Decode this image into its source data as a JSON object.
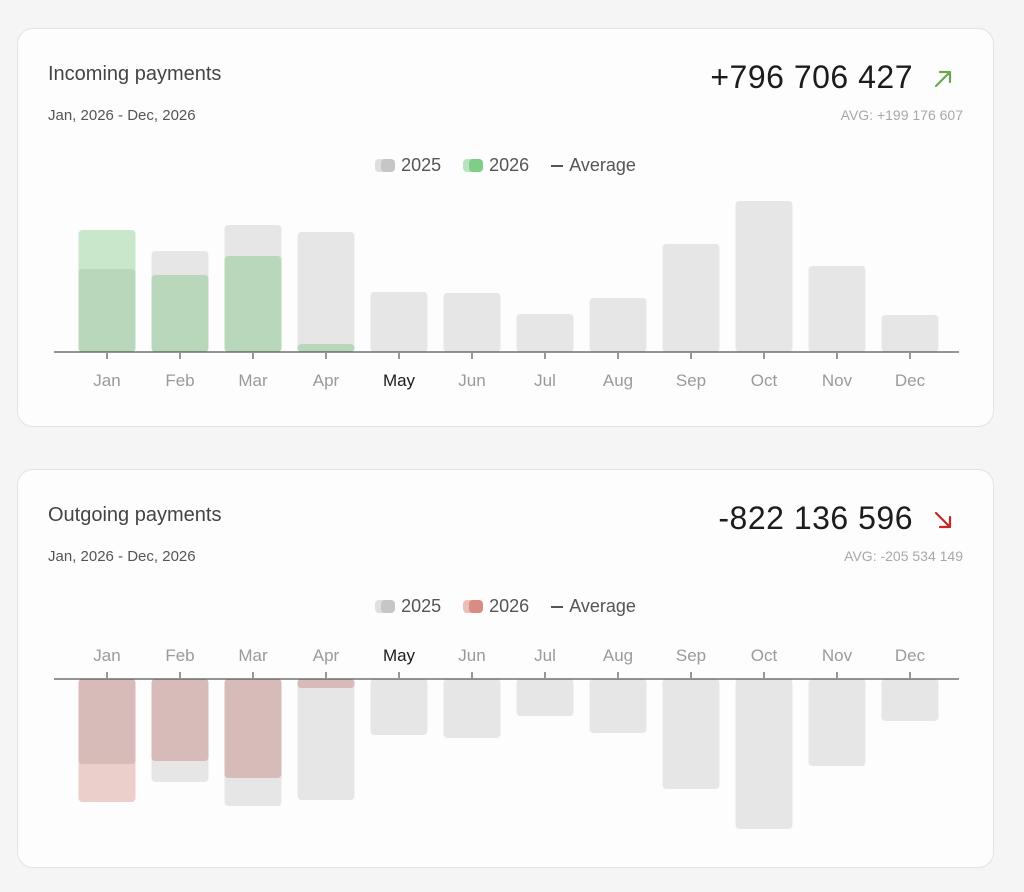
{
  "chart_data": [
    {
      "type": "bar",
      "title": "Incoming payments",
      "subtitle": "Jan, 2026 - Dec, 2026",
      "total": "+796 706 427",
      "avg": "AVG: +199 176 607",
      "direction": "up",
      "categories": [
        "Jan",
        "Feb",
        "Mar",
        "Apr",
        "May",
        "Jun",
        "Jul",
        "Aug",
        "Sep",
        "Oct",
        "Nov",
        "Dec"
      ],
      "highlight_category": "May",
      "series": [
        {
          "name": "2025",
          "color": "#e6e6e6",
          "values": [
            83,
            101,
            127,
            120,
            60,
            59,
            38,
            54,
            108,
            151,
            86,
            37
          ]
        },
        {
          "name": "2026",
          "color": "#c9e8cb",
          "values": [
            122,
            null,
            null,
            8,
            null,
            null,
            null,
            null,
            null,
            null,
            null,
            null
          ]
        },
        {
          "name": "Average",
          "color": "#b9d7bb",
          "values": [
            83,
            77,
            96,
            8,
            null,
            null,
            null,
            null,
            null,
            null,
            null,
            null
          ]
        }
      ],
      "legend": [
        "2025",
        "2026",
        "Average"
      ],
      "legend_colors": [
        "#c6c6c6",
        "#7fcd86"
      ],
      "trend_color": "#6aa84f"
    },
    {
      "type": "bar",
      "title": "Outgoing payments",
      "subtitle": "Jan, 2026 - Dec, 2026",
      "total": "-822 136 596",
      "avg": "AVG: -205 534 149",
      "direction": "down",
      "categories": [
        "Jan",
        "Feb",
        "Mar",
        "Apr",
        "May",
        "Jun",
        "Jul",
        "Aug",
        "Sep",
        "Oct",
        "Nov",
        "Dec"
      ],
      "highlight_category": "May",
      "series": [
        {
          "name": "2025",
          "color": "#e6e6e6",
          "values": [
            -85,
            -103,
            -127,
            -121,
            -56,
            -59,
            -37,
            -54,
            -110,
            -150,
            -87,
            -42
          ]
        },
        {
          "name": "2026",
          "color": "#ebcfcb",
          "values": [
            -123,
            -82,
            -99,
            -9,
            null,
            null,
            null,
            null,
            null,
            null,
            null,
            null
          ]
        },
        {
          "name": "Average",
          "color": "#d6bbb8",
          "values": [
            -85,
            -82,
            -99,
            -9,
            null,
            null,
            null,
            null,
            null,
            null,
            null,
            null
          ]
        }
      ],
      "legend": [
        "2025",
        "2026",
        "Average"
      ],
      "legend_colors": [
        "#c6c6c6",
        "#d98c82"
      ],
      "trend_color": "#c62828"
    }
  ]
}
